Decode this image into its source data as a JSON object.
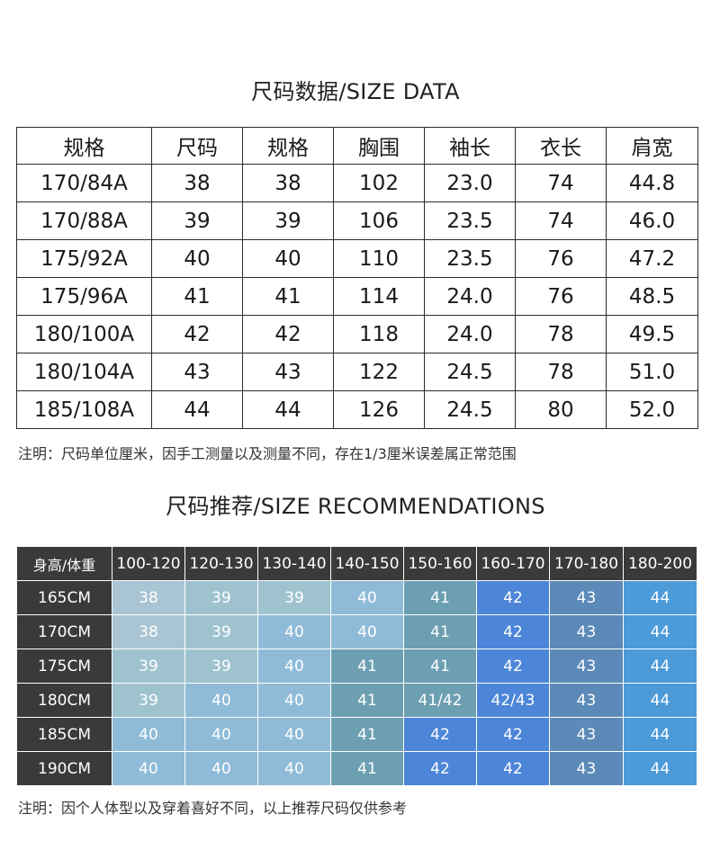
{
  "size_section": {
    "title": "尺码数据/SIZE DATA",
    "headers": [
      "规格",
      "尺码",
      "规格",
      "胸围",
      "袖长",
      "衣长",
      "肩宽"
    ],
    "rows": [
      [
        "170/84A",
        "38",
        "38",
        "102",
        "23.0",
        "74",
        "44.8"
      ],
      [
        "170/88A",
        "39",
        "39",
        "106",
        "23.5",
        "74",
        "46.0"
      ],
      [
        "175/92A",
        "40",
        "40",
        "110",
        "23.5",
        "76",
        "47.2"
      ],
      [
        "175/96A",
        "41",
        "41",
        "114",
        "24.0",
        "76",
        "48.5"
      ],
      [
        "180/100A",
        "42",
        "42",
        "118",
        "24.0",
        "78",
        "49.5"
      ],
      [
        "180/104A",
        "43",
        "43",
        "122",
        "24.5",
        "78",
        "51.0"
      ],
      [
        "185/108A",
        "44",
        "44",
        "126",
        "24.5",
        "80",
        "52.0"
      ]
    ],
    "note": "注明：尺码单位厘米，因手工测量以及测量不同，存在1/3厘米误差属正常范围"
  },
  "rec_section": {
    "title": "尺码推荐/SIZE RECOMMENDATIONS",
    "corner": "身高/体重",
    "weights": [
      "100-120",
      "120-130",
      "130-140",
      "140-150",
      "150-160",
      "160-170",
      "170-180",
      "180-200"
    ],
    "rows": [
      {
        "height": "165CM",
        "cells": [
          "38",
          "39",
          "39",
          "40",
          "41",
          "42",
          "43",
          "44"
        ]
      },
      {
        "height": "170CM",
        "cells": [
          "38",
          "39",
          "40",
          "40",
          "41",
          "42",
          "43",
          "44"
        ]
      },
      {
        "height": "175CM",
        "cells": [
          "39",
          "39",
          "40",
          "41",
          "41",
          "42",
          "43",
          "44"
        ]
      },
      {
        "height": "180CM",
        "cells": [
          "39",
          "40",
          "40",
          "41",
          "41/42",
          "42/43",
          "43",
          "44"
        ]
      },
      {
        "height": "185CM",
        "cells": [
          "40",
          "40",
          "40",
          "41",
          "42",
          "42",
          "43",
          "44"
        ]
      },
      {
        "height": "190CM",
        "cells": [
          "40",
          "40",
          "40",
          "41",
          "42",
          "42",
          "43",
          "44"
        ]
      }
    ],
    "size_colors": {
      "38": "#a9c5d3",
      "39": "#9fc2cf",
      "40": "#8fbbd8",
      "41": "#6d9fb2",
      "41/42": "#6d9fb2",
      "42": "#4d86d8",
      "42/43": "#4d86d8",
      "43": "#5c8ab8",
      "44": "#4c9ad8"
    },
    "note": "注明：因个人体型以及穿着喜好不同，以上推荐尺码仅供参考"
  }
}
